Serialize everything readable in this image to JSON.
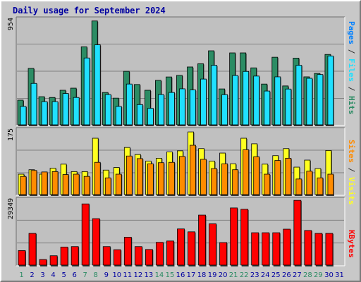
{
  "title": "Daily usage for September 2024",
  "colors": {
    "hits": "#2c8c64",
    "files": "#20e0ff",
    "pages": "#0080ff",
    "visits": "#ffff20",
    "sites": "#ff8c00",
    "kbytes": "#ff0000",
    "weekend_label": "#2c8c64",
    "weekday_label": "#0000a0",
    "grid": "#808080",
    "plot_bg": "#c0c0c0"
  },
  "chart_data": [
    {
      "type": "bar",
      "title": "Daily usage for September 2024",
      "ylabel": "Pages / Files / Hits",
      "ymax_label": "954",
      "ylim": [
        0,
        954
      ],
      "grid": true,
      "categories": [
        "1",
        "2",
        "3",
        "4",
        "5",
        "6",
        "7",
        "8",
        "9",
        "10",
        "11",
        "12",
        "13",
        "14",
        "15",
        "16",
        "17",
        "18",
        "19",
        "20",
        "21",
        "22",
        "23",
        "24",
        "25",
        "26",
        "27",
        "28",
        "29",
        "30",
        "31"
      ],
      "series": [
        {
          "name": "Hits",
          "values": [
            229,
            515,
            260,
            253,
            318,
            337,
            710,
            943,
            298,
            247,
            489,
            370,
            318,
            407,
            438,
            452,
            528,
            557,
            674,
            330,
            655,
            655,
            520,
            374,
            616,
            357,
            608,
            439,
            470,
            641,
            0
          ]
        },
        {
          "name": "Files",
          "values": [
            172,
            380,
            215,
            215,
            289,
            253,
            609,
            728,
            279,
            172,
            374,
            189,
            155,
            279,
            298,
            331,
            321,
            419,
            543,
            278,
            451,
            488,
            446,
            311,
            439,
            329,
            543,
            426,
            460,
            627,
            0
          ]
        },
        {
          "name": "Pages",
          "values": [
            0,
            0,
            0,
            0,
            0,
            0,
            0,
            0,
            0,
            0,
            0,
            0,
            0,
            0,
            0,
            0,
            0,
            0,
            0,
            0,
            0,
            0,
            0,
            0,
            0,
            0,
            0,
            0,
            0,
            0,
            0
          ]
        }
      ]
    },
    {
      "type": "bar",
      "ylabel": "Sites / Visits",
      "ymax_label": "175",
      "ylim": [
        0,
        175
      ],
      "grid": true,
      "categories": [
        "1",
        "2",
        "3",
        "4",
        "5",
        "6",
        "7",
        "8",
        "9",
        "10",
        "11",
        "12",
        "13",
        "14",
        "15",
        "16",
        "17",
        "18",
        "19",
        "20",
        "21",
        "22",
        "23",
        "24",
        "25",
        "26",
        "27",
        "28",
        "29",
        "30",
        "31"
      ],
      "series": [
        {
          "name": "Visits",
          "values": [
            57,
            69,
            57,
            73,
            84,
            64,
            64,
            154,
            68,
            75,
            129,
            110,
            92,
            100,
            117,
            120,
            171,
            126,
            92,
            114,
            85,
            154,
            139,
            84,
            107,
            126,
            76,
            95,
            72,
            121,
            0
          ]
        },
        {
          "name": "Sites",
          "values": [
            51,
            67,
            63,
            64,
            56,
            57,
            51,
            89,
            47,
            57,
            106,
            99,
            85,
            88,
            89,
            105,
            135,
            97,
            72,
            85,
            69,
            123,
            104,
            57,
            94,
            100,
            44,
            65,
            47,
            57,
            0
          ]
        }
      ]
    },
    {
      "type": "bar",
      "ylabel": "KBytes",
      "ymax_label": "29349",
      "ylim": [
        0,
        29349
      ],
      "grid": true,
      "categories": [
        "1",
        "2",
        "3",
        "4",
        "5",
        "6",
        "7",
        "8",
        "9",
        "10",
        "11",
        "12",
        "13",
        "14",
        "15",
        "16",
        "17",
        "18",
        "19",
        "20",
        "21",
        "22",
        "23",
        "24",
        "25",
        "26",
        "27",
        "28",
        "29",
        "30",
        "31"
      ],
      "series": [
        {
          "name": "KBytes",
          "values": [
            6800,
            14500,
            2800,
            4500,
            8400,
            8600,
            27700,
            21100,
            8600,
            7200,
            12800,
            8600,
            7300,
            10500,
            11100,
            16500,
            15200,
            22700,
            18800,
            10400,
            25900,
            25300,
            14800,
            14800,
            14800,
            16400,
            29300,
            15800,
            14500,
            14500,
            0
          ]
        }
      ]
    }
  ],
  "side_labels": {
    "top": [
      {
        "text": "Pages",
        "color": "#0080ff"
      },
      {
        "text": " / ",
        "color": "#333333"
      },
      {
        "text": "Files",
        "color": "#20e0ff"
      },
      {
        "text": " / ",
        "color": "#333333"
      },
      {
        "text": "Hits",
        "color": "#2c8c64"
      }
    ],
    "middle": [
      {
        "text": "Sites",
        "color": "#ff8c00"
      },
      {
        "text": " / ",
        "color": "#333333"
      },
      {
        "text": "Visits",
        "color": "#ffff20"
      }
    ],
    "bottom": [
      {
        "text": "KBytes",
        "color": "#ff0000"
      }
    ]
  },
  "weekend_days": [
    1,
    7,
    8,
    14,
    15,
    21,
    22,
    28,
    29
  ]
}
